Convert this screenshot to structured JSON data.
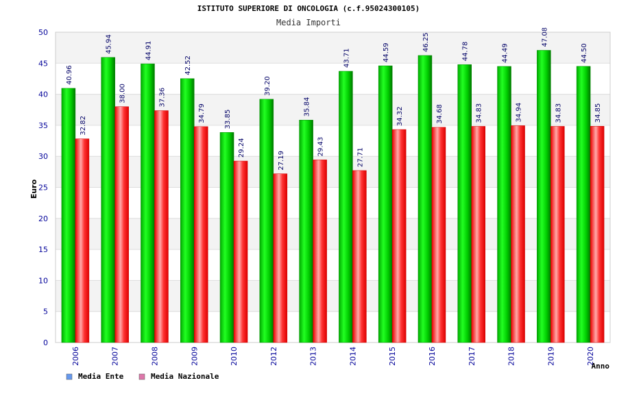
{
  "header": {
    "title": "ISTITUTO SUPERIORE DI ONCOLOGIA (c.f.95024300105)"
  },
  "chart_data": {
    "type": "bar",
    "title": "Media Importi",
    "ylabel": "Euro",
    "xlabel": "Anno",
    "ylim": [
      0,
      50
    ],
    "yticks": [
      0,
      5,
      10,
      15,
      20,
      25,
      30,
      35,
      40,
      45,
      50
    ],
    "grid": true,
    "legend_position": "bottom-left",
    "categories": [
      "2006",
      "2007",
      "2008",
      "2009",
      "2010",
      "2012",
      "2013",
      "2014",
      "2015",
      "2016",
      "2017",
      "2018",
      "2019",
      "2020"
    ],
    "series": [
      {
        "name": "Media Ente",
        "color": "#00cc00",
        "legend_color": "#6699ee",
        "values": [
          40.96,
          45.94,
          44.91,
          42.52,
          33.85,
          39.2,
          35.84,
          43.71,
          44.59,
          46.25,
          44.78,
          44.49,
          47.08,
          44.5
        ],
        "labels": [
          "40.96",
          "45.94",
          "44.91",
          "42.52",
          "33.85",
          "39.20",
          "35.84",
          "43.71",
          "44.59",
          "46.25",
          "44.78",
          "44.49",
          "47.08",
          "44.50"
        ]
      },
      {
        "name": "Media Nazionale",
        "color": "#ff0000",
        "legend_color": "#dd77aa",
        "values": [
          32.82,
          38.0,
          37.36,
          34.79,
          29.24,
          27.19,
          29.43,
          27.71,
          34.32,
          34.68,
          34.83,
          34.94,
          34.83,
          34.85
        ],
        "labels": [
          "32.82",
          "38.00",
          "37.36",
          "34.79",
          "29.24",
          "27.19",
          "29.43",
          "27.71",
          "34.32",
          "34.68",
          "34.83",
          "34.94",
          "34.83",
          "34.85"
        ]
      }
    ]
  }
}
